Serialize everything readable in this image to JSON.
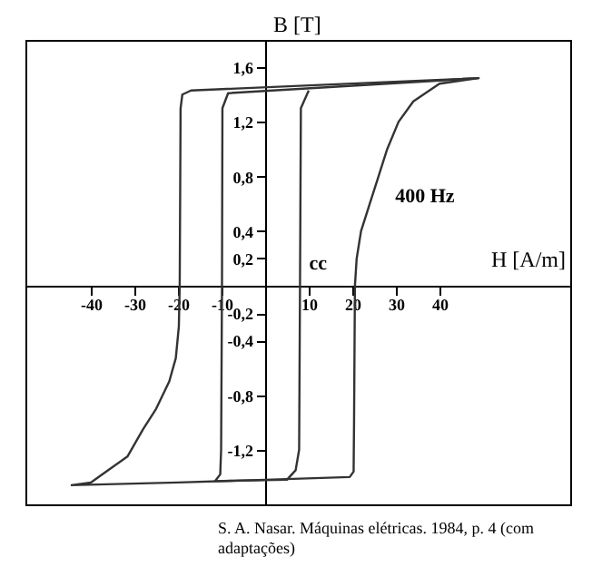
{
  "chart_data": {
    "type": "line",
    "xlabel": "H [A/m]",
    "ylabel": "B [T]",
    "xlim": [
      -55,
      70
    ],
    "ylim": [
      -1.6,
      1.8
    ],
    "xticks": [
      -40,
      -30,
      -20,
      -10,
      10,
      20,
      30,
      40
    ],
    "yticks": [
      {
        "value": 1.6,
        "label": "1,6"
      },
      {
        "value": 1.2,
        "label": "1,2"
      },
      {
        "value": 0.8,
        "label": "0,8"
      },
      {
        "value": 0.4,
        "label": "0,4"
      },
      {
        "value": 0.2,
        "label": "0,2"
      },
      {
        "value": -0.2,
        "label": "-0,2"
      },
      {
        "value": -0.4,
        "label": "-0,4"
      },
      {
        "value": -0.8,
        "label": "-0,8"
      },
      {
        "value": -1.2,
        "label": "-1,2"
      }
    ],
    "marker": "none",
    "line_style": "solid",
    "series": [
      {
        "name": "400 Hz",
        "color": "#333333",
        "x": [
          -44.6,
          -20,
          0,
          19.4,
          20.3,
          20.4,
          20.6,
          21,
          22,
          24,
          26,
          28,
          30.6,
          34,
          40,
          49,
          -17,
          -19,
          -19.4,
          -19.6,
          -19.8,
          -20.5,
          -22,
          -25,
          -28,
          -31.6,
          -36,
          -40,
          -44.5
        ],
        "values": [
          -1.46,
          -1.44,
          -1.42,
          -1.4,
          -1.36,
          -1.0,
          0,
          0.2,
          0.4,
          0.6,
          0.8,
          1.0,
          1.2,
          1.35,
          1.48,
          1.52,
          1.43,
          1.4,
          1.3,
          0,
          -0.3,
          -0.53,
          -0.7,
          -0.9,
          -1.05,
          -1.25,
          -1.35,
          -1.44,
          -1.46
        ]
      },
      {
        "name": "cc",
        "color": "#333333",
        "x": [
          49,
          -8.5,
          -9.8,
          -9.9,
          -10.1,
          -10.3,
          -11.5,
          5,
          7,
          7.8,
          8.0,
          8.2,
          10
        ],
        "values": [
          1.52,
          1.41,
          1.3,
          0,
          -1.2,
          -1.38,
          -1.43,
          -1.42,
          -1.35,
          -1.2,
          0,
          1.3,
          1.43
        ]
      }
    ],
    "annotations": [
      "S. A. Nasar. Máquinas elétricas. 1984, p. 4 (com adaptações)"
    ]
  }
}
